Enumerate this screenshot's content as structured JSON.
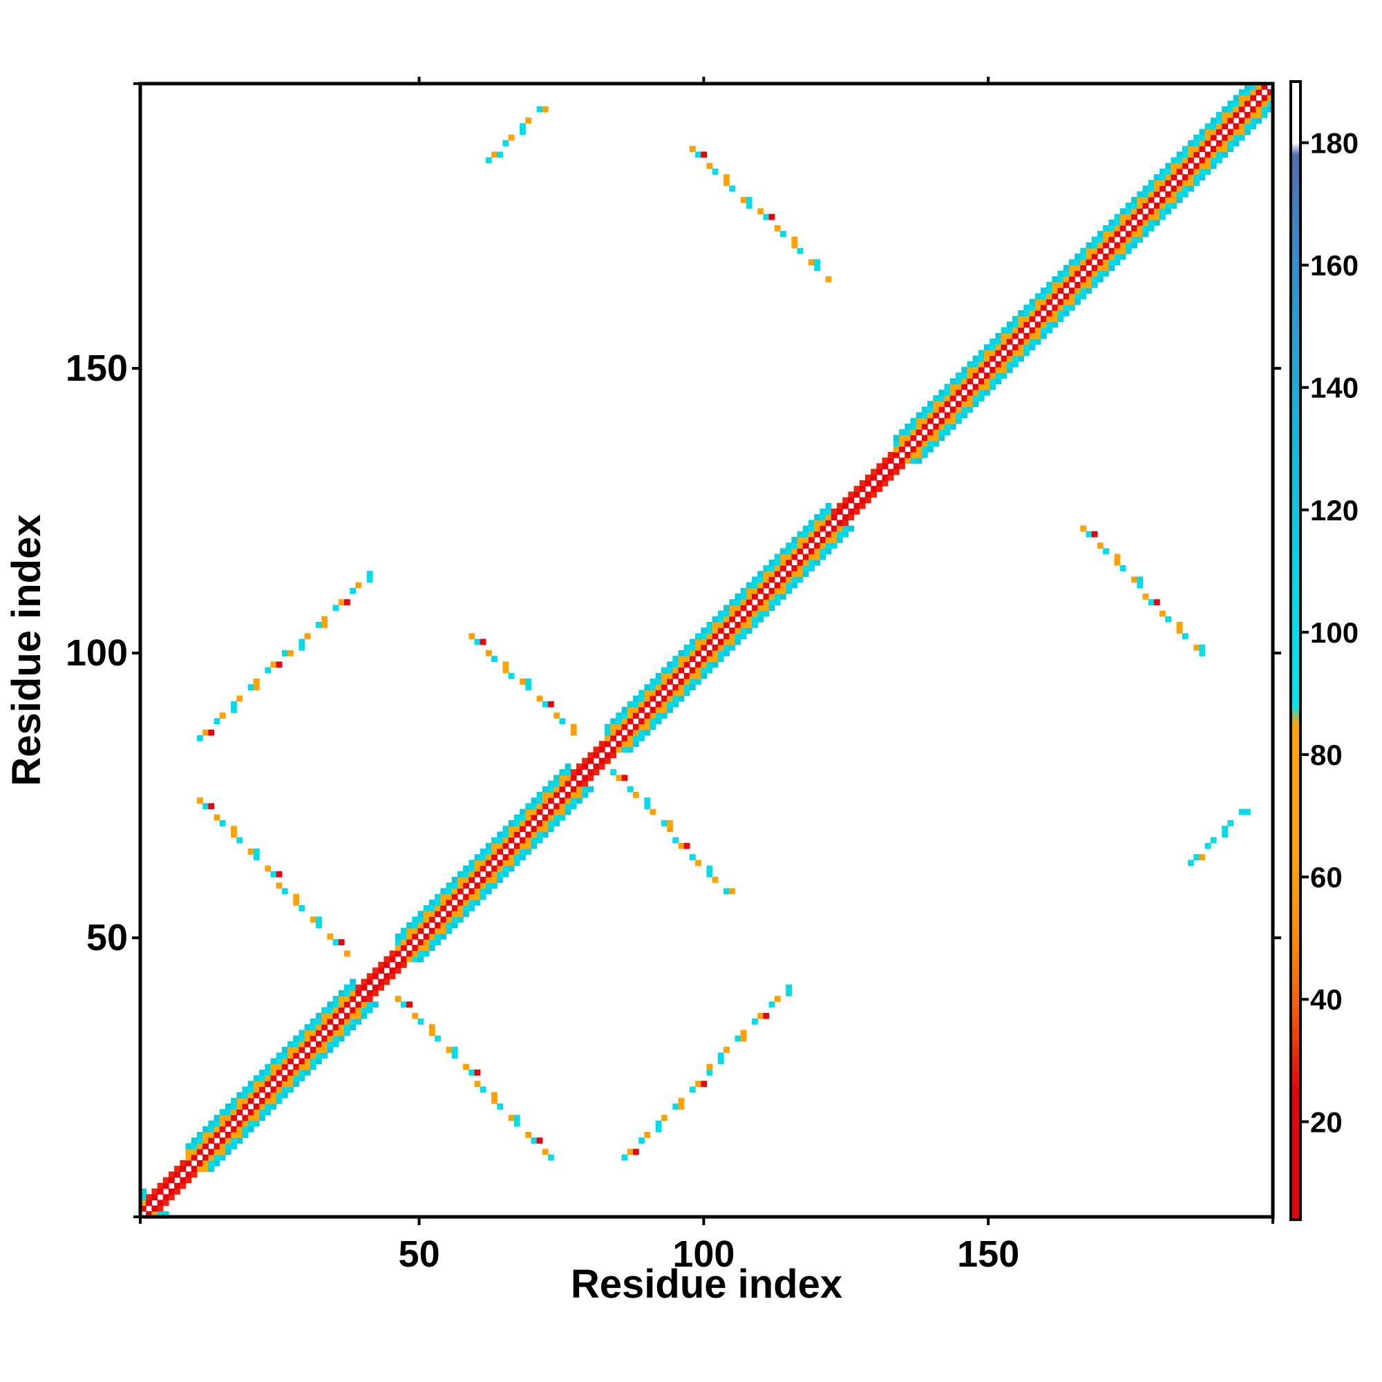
{
  "chart_data": {
    "type": "heatmap",
    "title": "",
    "xlabel": "Residue index",
    "ylabel": "Residue index",
    "xlim": [
      1,
      200
    ],
    "ylim": [
      1,
      200
    ],
    "x_ticks": [
      50,
      100,
      150
    ],
    "y_ticks": [
      50,
      100,
      150
    ],
    "grid": false,
    "colorbar": {
      "position": "right",
      "range": [
        4,
        190
      ],
      "ticks": [
        20,
        40,
        60,
        80,
        100,
        120,
        140,
        160,
        180
      ],
      "stops": [
        {
          "value": 4,
          "color": "#e8000b"
        },
        {
          "value": 25,
          "color": "#e8000b"
        },
        {
          "value": 38,
          "color": "#f55a0a"
        },
        {
          "value": 50,
          "color": "#ff8c00"
        },
        {
          "value": 62,
          "color": "#ffa500"
        },
        {
          "value": 85,
          "color": "#ffa500"
        },
        {
          "value": 88,
          "color": "#00e5ee"
        },
        {
          "value": 110,
          "color": "#00d5e6"
        },
        {
          "value": 140,
          "color": "#1aaed8"
        },
        {
          "value": 165,
          "color": "#3f85c6"
        },
        {
          "value": 178,
          "color": "#4d6fb0"
        },
        {
          "value": 180,
          "color": "#ffffff"
        },
        {
          "value": 190,
          "color": "#ffffff"
        }
      ]
    },
    "diagonal_band": {
      "i_range": [
        1,
        200
      ],
      "offset_values": {
        "1": 22,
        "2": 62,
        "3": 100,
        "4": 110
      },
      "helix_segments": [
        [
          9,
          38
        ],
        [
          46,
          76
        ],
        [
          83,
          122
        ],
        [
          134,
          200
        ]
      ],
      "strand_segments": [
        [
          2,
          8
        ],
        [
          39,
          45
        ],
        [
          77,
          82
        ],
        [
          123,
          133
        ]
      ]
    },
    "contact_lines": [
      {
        "from": [
          11,
          74
        ],
        "to": [
          37,
          47
        ],
        "color_values": [
          60,
          100,
          25
        ]
      },
      {
        "from": [
          46,
          39
        ],
        "to": [
          73,
          11
        ],
        "color_values": [
          60,
          100,
          25
        ]
      },
      {
        "from": [
          11,
          85
        ],
        "to": [
          41,
          114
        ],
        "color_values": [
          100,
          60,
          25
        ]
      },
      {
        "from": [
          86,
          11
        ],
        "to": [
          115,
          41
        ],
        "color_values": [
          100,
          60,
          25
        ]
      },
      {
        "from": [
          59,
          103
        ],
        "to": [
          77,
          86
        ],
        "color_values": [
          60,
          100,
          25
        ]
      },
      {
        "from": [
          84,
          79
        ],
        "to": [
          104,
          58
        ],
        "color_values": [
          100,
          60,
          25
        ]
      },
      {
        "from": [
          98,
          189
        ],
        "to": [
          122,
          166
        ],
        "color_values": [
          60,
          100,
          25
        ]
      },
      {
        "from": [
          167,
          122
        ],
        "to": [
          189,
          99
        ],
        "color_values": [
          60,
          100,
          25
        ]
      },
      {
        "from": [
          62,
          187
        ],
        "to": [
          71,
          196
        ],
        "color_values": [
          100,
          60,
          100
        ]
      },
      {
        "from": [
          186,
          63
        ],
        "to": [
          195,
          72
        ],
        "color_values": [
          100,
          100,
          60
        ]
      }
    ]
  }
}
